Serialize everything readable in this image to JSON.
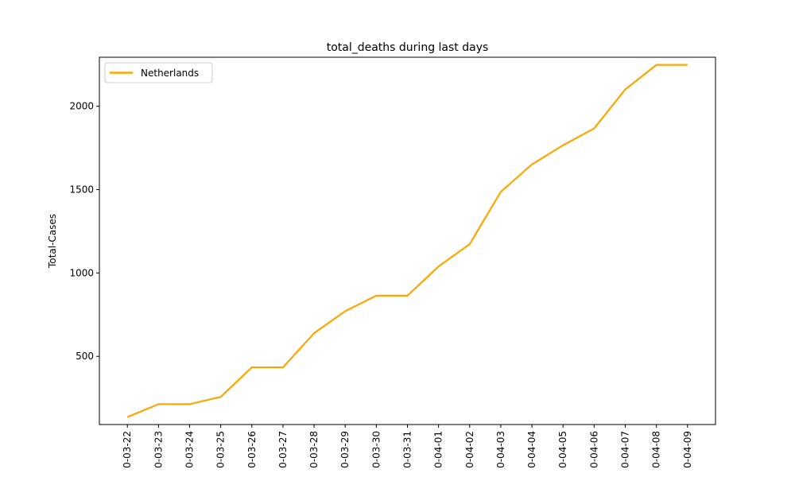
{
  "chart_data": {
    "type": "line",
    "title": "total_deaths during last days",
    "xlabel": "",
    "ylabel": "Total-Cases",
    "categories": [
      "0-03-22",
      "0-03-23",
      "0-03-24",
      "0-03-25",
      "0-03-26",
      "0-03-27",
      "0-03-28",
      "0-03-29",
      "0-03-30",
      "0-03-31",
      "0-04-01",
      "0-04-02",
      "0-04-03",
      "0-04-04",
      "0-04-05",
      "0-04-06",
      "0-04-07",
      "0-04-08",
      "0-04-09"
    ],
    "series": [
      {
        "name": "Netherlands",
        "color": "#ffa500",
        "values": [
          136,
          213,
          213,
          257,
          434,
          434,
          639,
          771,
          864,
          864,
          1039,
          1173,
          1487,
          1651,
          1766,
          1867,
          2101,
          2248,
          2248
        ]
      }
    ],
    "ylim": [
      91,
      2294
    ],
    "yticks": [
      500,
      1000,
      1500,
      2000
    ],
    "grid": false,
    "legend_position": "top-left"
  }
}
